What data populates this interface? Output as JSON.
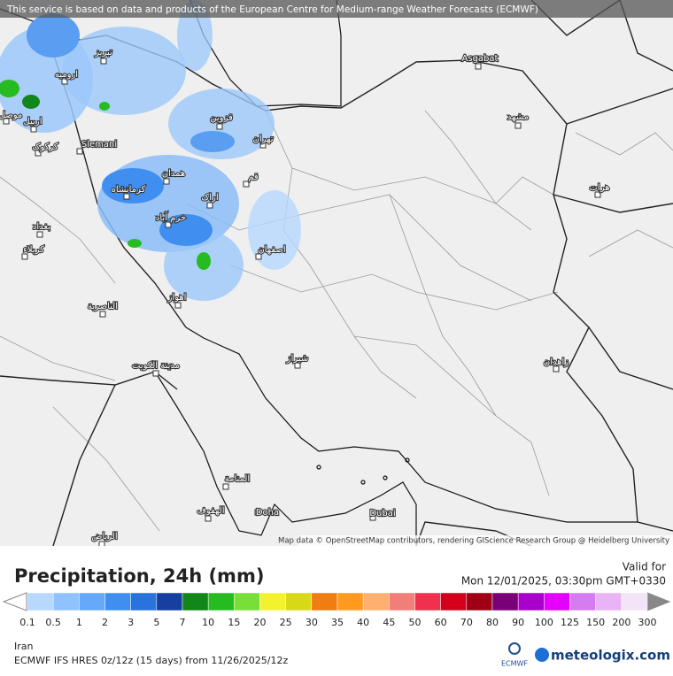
{
  "map": {
    "header_notice": "This service is based on data and products of the European Centre for Medium-range Weather Forecasts (ECMWF)",
    "attribution": "Map data © OpenStreetMap contributors, rendering GIScience Research Group @ Heidelberg University",
    "cities": [
      "Asgabat",
      "مشهد",
      "هرات",
      "تهران",
      "قزوین",
      "قم",
      "اراک",
      "همدان",
      "کرمانشاه",
      "خرم آباد",
      "اصفهان",
      "اهواز",
      "شیراز",
      "زاهدان",
      "Slemani",
      "تبریز",
      "ارومیه",
      "اربیل",
      "کرکوک",
      "موصل",
      "بغداد",
      "کربلاء",
      "الناصرية",
      "مدينة الكويت",
      "المنامة",
      "الهفوف",
      "Doha",
      "Dubai",
      "الرياض"
    ]
  },
  "legend": {
    "title": "Precipitation, 24h (mm)",
    "valid_label": "Valid for",
    "valid_time": "Mon 12/01/2025, 03:30pm GMT+0330",
    "ticks": [
      0.1,
      0.5,
      1,
      2,
      3,
      5,
      7,
      10,
      15,
      20,
      25,
      30,
      35,
      40,
      45,
      50,
      60,
      70,
      80,
      90,
      100,
      125,
      150,
      200,
      300
    ],
    "colors": [
      "#b7d8ff",
      "#8fc3ff",
      "#65a9fb",
      "#3f8ef0",
      "#2a72dc",
      "#163fa0",
      "#12861a",
      "#27bb22",
      "#79de37",
      "#f3f22c",
      "#d9d816",
      "#f07d10",
      "#ff9a1e",
      "#ffb070",
      "#f27e7a",
      "#f0304c",
      "#d3001c",
      "#a00016",
      "#7a0078",
      "#aa00cc",
      "#e600ff",
      "#d47cf0",
      "#e8b4f5",
      "#f3e4f7"
    ]
  },
  "footer": {
    "region": "Iran",
    "model": "ECMWF IFS HRES 0z/12z (15 days) from 11/26/2025/12z",
    "logo_ecmwf": "ECMWF",
    "logo_site": "meteologix.com"
  }
}
